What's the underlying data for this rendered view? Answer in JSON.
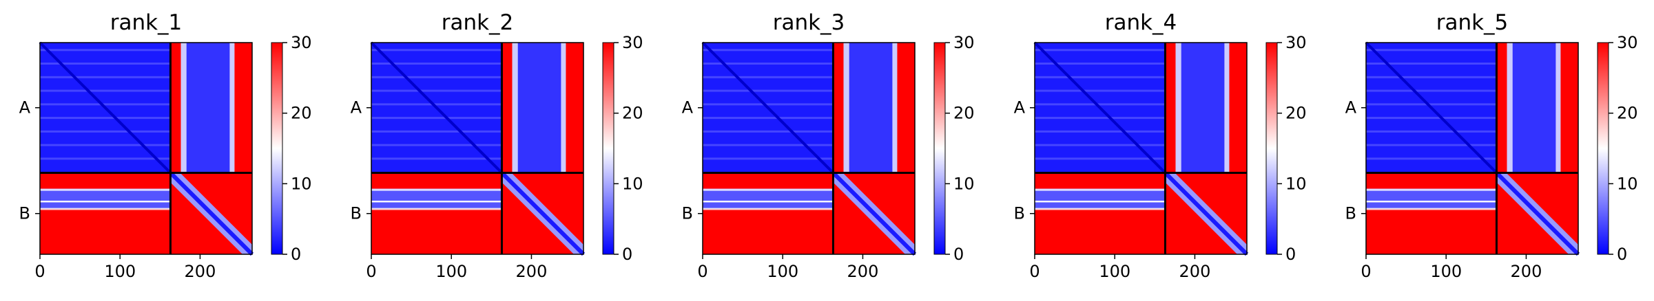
{
  "chart_data": {
    "type": "heatmap",
    "description_free": true,
    "panels": [
      {
        "title": "rank_1"
      },
      {
        "title": "rank_2"
      },
      {
        "title": "rank_3"
      },
      {
        "title": "rank_4"
      },
      {
        "title": "rank_5"
      }
    ],
    "chains": [
      {
        "label": "A",
        "start": 0,
        "end": 163
      },
      {
        "label": "B",
        "start": 163,
        "end": 265
      }
    ],
    "matrix_size": 265,
    "x_ticks": [
      "0",
      "100",
      "200"
    ],
    "x_tick_values": [
      0,
      100,
      200
    ],
    "y_tick_labels": [
      "A",
      "B"
    ],
    "colorbar": {
      "ticks": [
        "0",
        "10",
        "20",
        "30"
      ],
      "tick_values": [
        0,
        10,
        20,
        30
      ],
      "vmin": 0,
      "vmax": 30,
      "colormap": "bwr",
      "colors": {
        "low": "#0000ff",
        "mid": "#ffffff",
        "high": "#ff0000"
      }
    },
    "blocks": {
      "A_A": {
        "value_range": [
          0,
          6
        ],
        "color": "blue"
      },
      "A_B": {
        "stripes": [
          {
            "from": 163,
            "to": 176,
            "value": 30
          },
          {
            "from": 176,
            "to": 183,
            "value": 12
          },
          {
            "from": 183,
            "to": 237,
            "value": 3
          },
          {
            "from": 237,
            "to": 243,
            "value": 12
          },
          {
            "from": 243,
            "to": 265,
            "value": 30
          }
        ]
      },
      "B_A": {
        "bands": [
          {
            "from": 163,
            "to": 183,
            "value": 30
          },
          {
            "from": 183,
            "to": 198,
            "value": 5
          },
          {
            "from": 198,
            "to": 200,
            "value": 15
          },
          {
            "from": 200,
            "to": 208,
            "value": 5
          },
          {
            "from": 208,
            "to": 265,
            "value": 30
          }
        ]
      },
      "B_B": {
        "diagonal_value": 2,
        "off_diagonal_value": 30
      }
    }
  }
}
